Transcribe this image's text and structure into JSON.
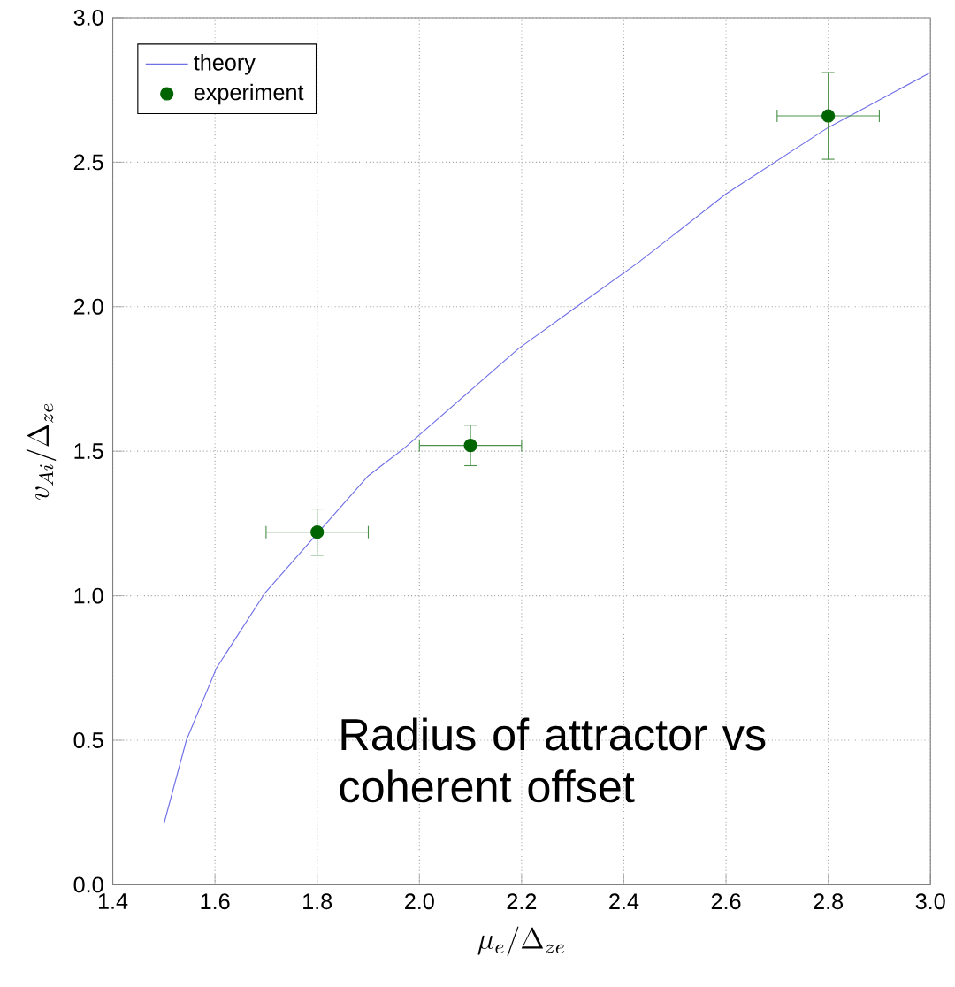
{
  "chart_data": {
    "type": "line",
    "xlabel": "\\mu_e/\\Delta_{ze}",
    "ylabel": "v_{Ai}/\\Delta_{ze}",
    "xlim": [
      1.4,
      3.0
    ],
    "ylim": [
      0.0,
      3.0
    ],
    "xticks": [
      {
        "value": 1.4,
        "label": "1.4"
      },
      {
        "value": 1.6,
        "label": "1.6"
      },
      {
        "value": 1.8,
        "label": "1.8"
      },
      {
        "value": 2.0,
        "label": "2.0"
      },
      {
        "value": 2.2,
        "label": "2.2"
      },
      {
        "value": 2.4,
        "label": "2.4"
      },
      {
        "value": 2.6,
        "label": "2.6"
      },
      {
        "value": 2.8,
        "label": "2.8"
      },
      {
        "value": 3.0,
        "label": "3.0"
      }
    ],
    "yticks": [
      {
        "value": 0.0,
        "label": "0.0"
      },
      {
        "value": 0.5,
        "label": "0.5"
      },
      {
        "value": 1.0,
        "label": "1.0"
      },
      {
        "value": 1.5,
        "label": "1.5"
      },
      {
        "value": 2.0,
        "label": "2.0"
      },
      {
        "value": 2.5,
        "label": "2.5"
      },
      {
        "value": 3.0,
        "label": "3.0"
      }
    ],
    "grid": true,
    "legend": "top left",
    "annotations": [
      "Radius of attractor vs coherent offset"
    ],
    "series": [
      {
        "name": "theory",
        "color": "#6f6fe8",
        "marker": "none",
        "x": [
          1.5,
          1.544,
          1.603,
          1.698,
          1.8,
          1.9,
          1.97,
          2.194,
          2.3,
          2.43,
          2.6,
          2.8,
          3.0
        ],
        "values": [
          0.21,
          0.5,
          0.75,
          1.01,
          1.215,
          1.415,
          1.51,
          1.855,
          1.99,
          2.155,
          2.39,
          2.62,
          2.81
        ]
      },
      {
        "name": "experiment",
        "type": "scatter",
        "color": "#006400",
        "marker": "circle",
        "x": [
          1.8,
          2.1,
          2.8
        ],
        "values": [
          1.22,
          1.52,
          2.66
        ],
        "errors": [
          0.08,
          0.07,
          0.15
        ],
        "xerrors": [
          0.1,
          0.1,
          0.1
        ]
      }
    ]
  }
}
